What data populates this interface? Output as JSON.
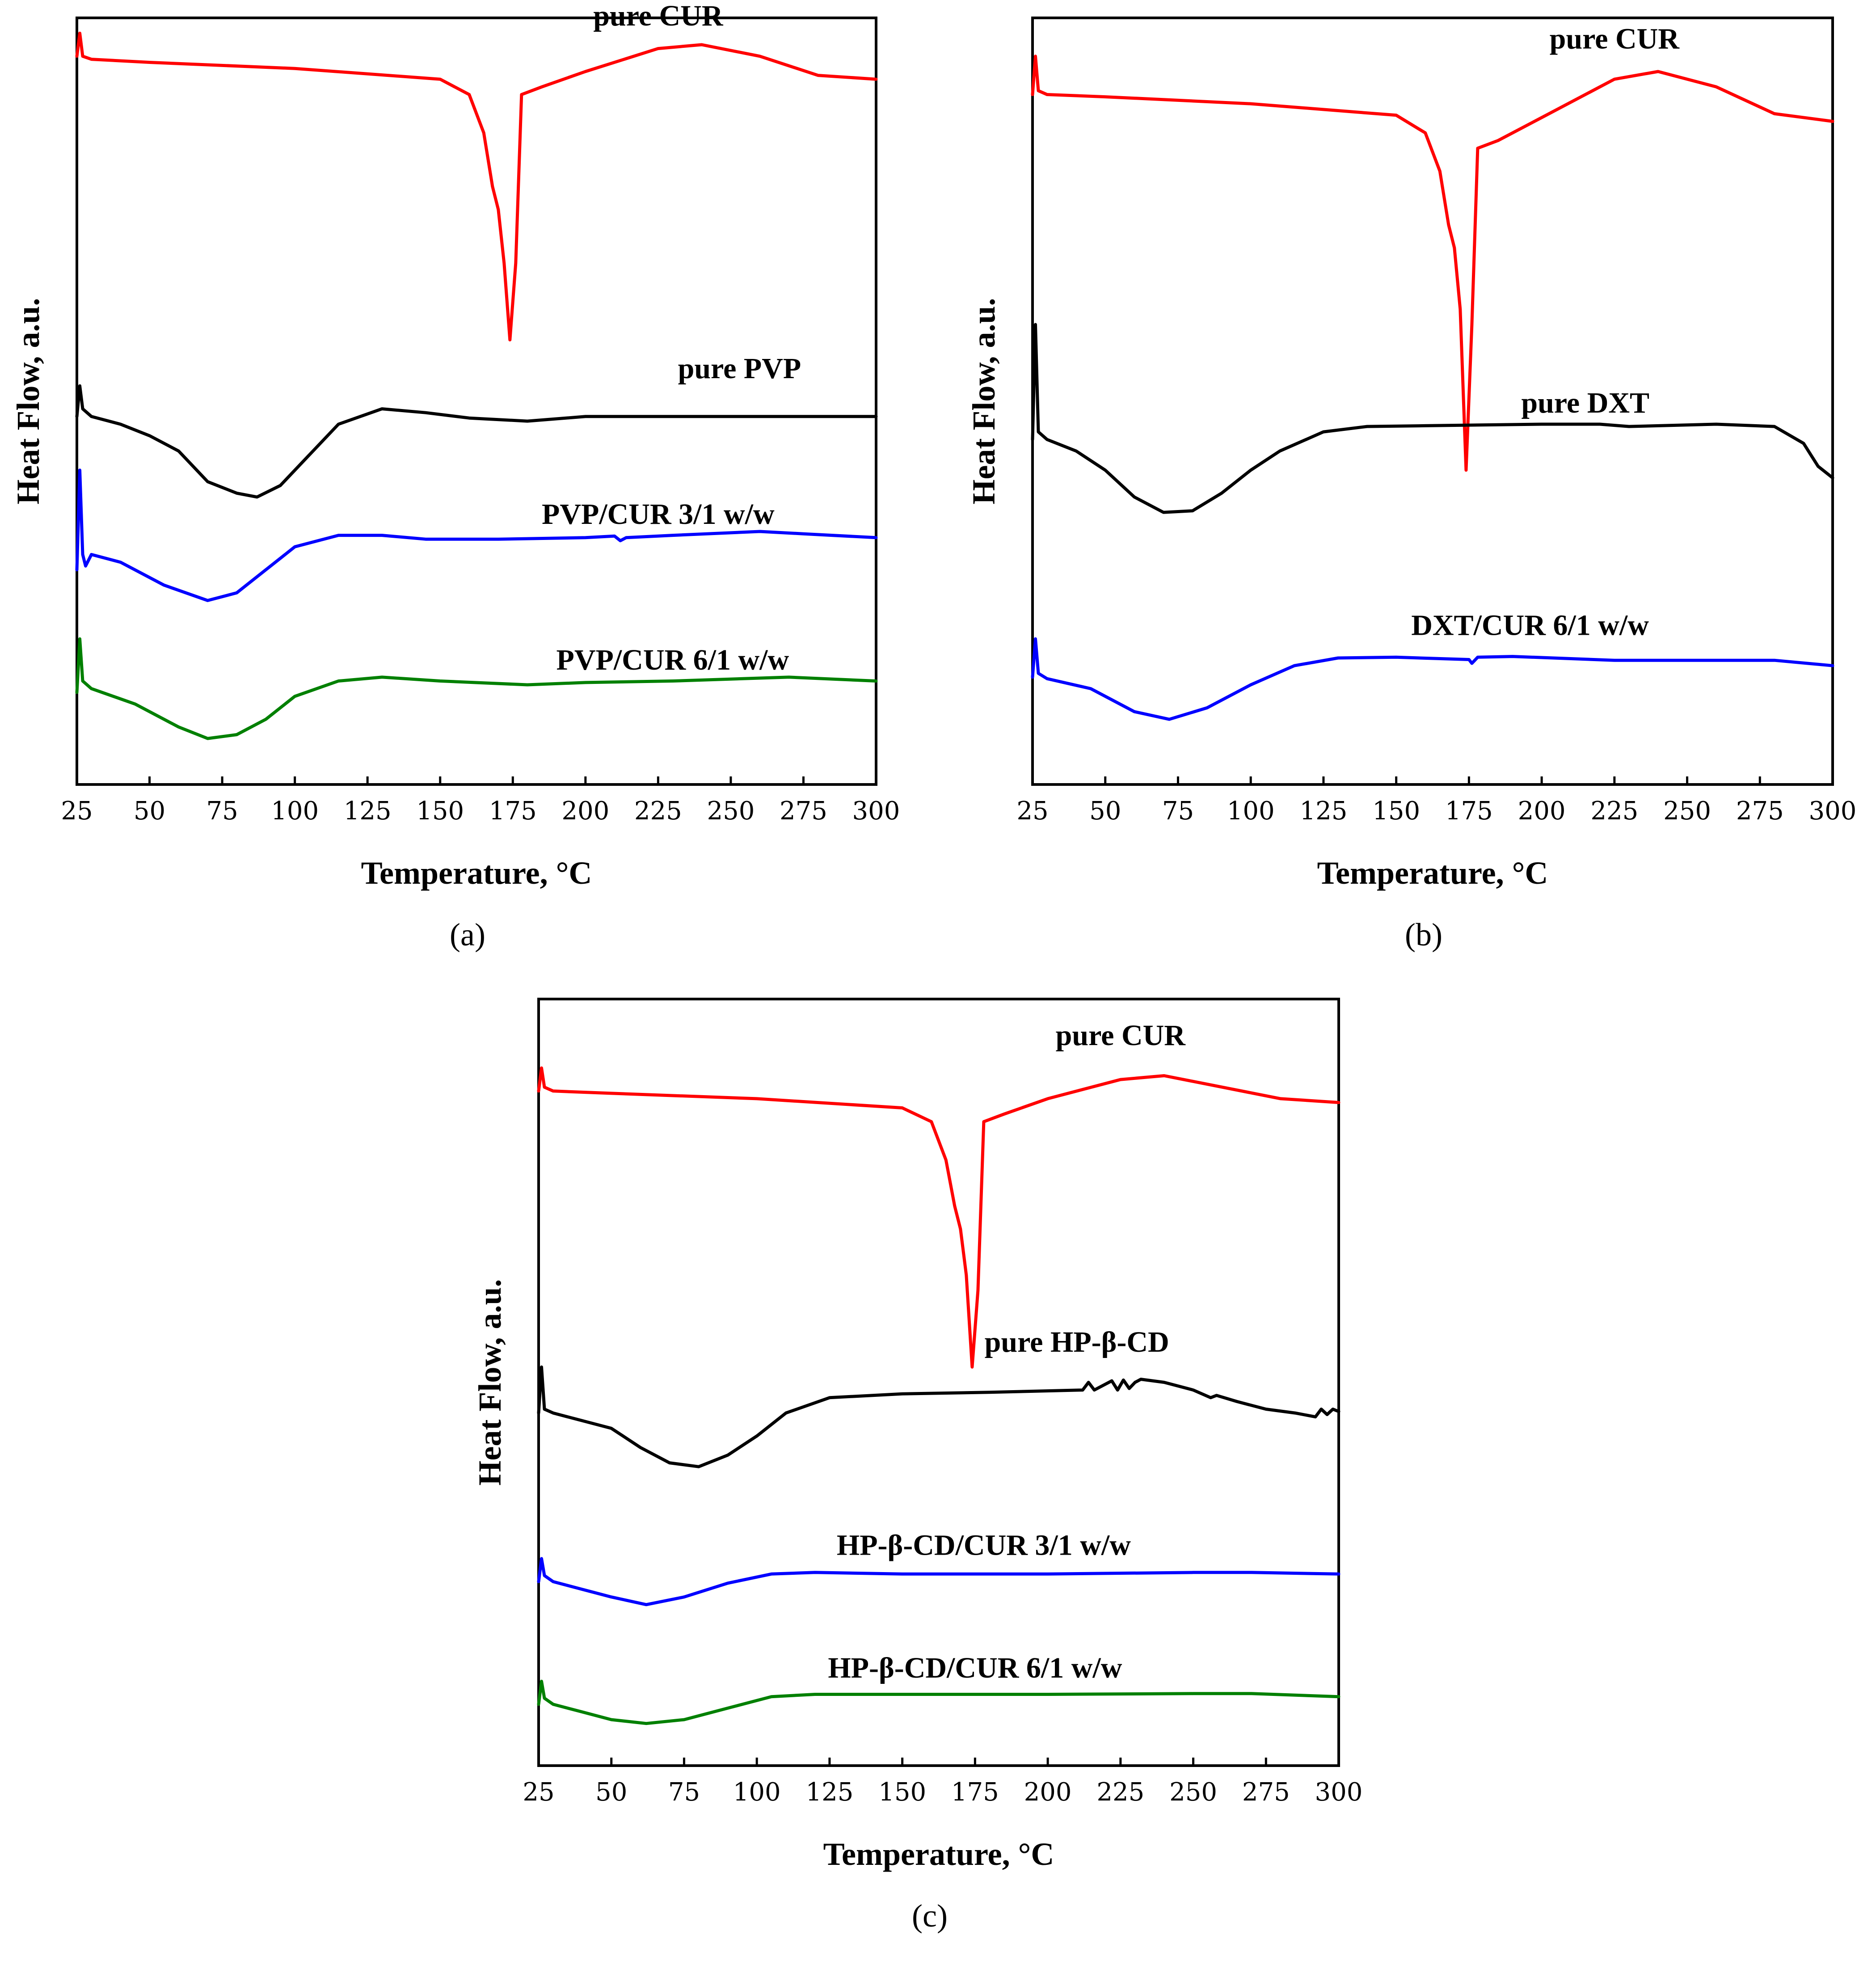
{
  "colors": {
    "red": "#ff0000",
    "black": "#000000",
    "blue": "#0000ff",
    "green": "#008000"
  },
  "chart_data": [
    {
      "type": "line",
      "id": "a",
      "panel_label": "(a)",
      "xlabel": "Temperature, °C",
      "ylabel": "Heat Flow, a.u.",
      "xlim": [
        25,
        300
      ],
      "ylim": [
        0,
        100
      ],
      "xticks": [
        25,
        50,
        75,
        100,
        125,
        150,
        175,
        200,
        225,
        250,
        275,
        300
      ],
      "series": [
        {
          "name": "pure CUR",
          "color": "#ff0000",
          "x": [
            25,
            26,
            27,
            30,
            50,
            100,
            150,
            160,
            165,
            168,
            170,
            172,
            174,
            176,
            178,
            185,
            200,
            225,
            240,
            260,
            280,
            300
          ],
          "y": [
            95,
            98,
            95,
            94.6,
            94.2,
            93.4,
            92,
            90,
            85,
            78,
            75,
            68,
            58,
            68,
            90,
            91,
            93,
            96,
            96.5,
            95,
            92.5,
            92
          ],
          "label_x": 225,
          "label_y": 99
        },
        {
          "name": "pure PVP",
          "color": "#000000",
          "x": [
            25,
            26,
            27,
            30,
            40,
            50,
            60,
            70,
            80,
            87,
            95,
            105,
            115,
            130,
            145,
            160,
            180,
            200,
            250,
            300
          ],
          "y": [
            48,
            52,
            49,
            48,
            47,
            45.5,
            43.5,
            39.5,
            38,
            37.5,
            39,
            43,
            47,
            49,
            48.5,
            47.8,
            47.4,
            48,
            48,
            48
          ],
          "label_x": 253,
          "label_y": 53
        },
        {
          "name": "PVP/CUR 3/1 w/w",
          "color": "#0000ff",
          "x": [
            25,
            26,
            27,
            28,
            30,
            40,
            55,
            70,
            80,
            90,
            100,
            115,
            130,
            145,
            170,
            200,
            210,
            212,
            214,
            230,
            260,
            275,
            300
          ],
          "y": [
            28,
            41,
            30,
            28.5,
            30,
            29,
            26,
            24,
            25,
            28,
            31,
            32.5,
            32.5,
            32,
            32,
            32.2,
            32.4,
            31.8,
            32.2,
            32.5,
            33,
            32.7,
            32.2
          ],
          "label_x": 225,
          "label_y": 34
        },
        {
          "name": "PVP/CUR 6/1 w/w",
          "color": "#008000",
          "x": [
            25,
            26,
            27,
            30,
            45,
            60,
            70,
            80,
            90,
            100,
            115,
            130,
            150,
            180,
            200,
            230,
            270,
            300
          ],
          "y": [
            12,
            19,
            13.5,
            12.5,
            10.5,
            7.5,
            6,
            6.5,
            8.5,
            11.5,
            13.5,
            14,
            13.5,
            13,
            13.3,
            13.5,
            14,
            13.5
          ],
          "label_x": 230,
          "label_y": 15
        }
      ]
    },
    {
      "type": "line",
      "id": "b",
      "panel_label": "(b)",
      "xlabel": "Temperature, °C",
      "ylabel": "Heat Flow, a.u.",
      "xlim": [
        25,
        300
      ],
      "ylim": [
        0,
        100
      ],
      "xticks": [
        25,
        50,
        75,
        100,
        125,
        150,
        175,
        200,
        225,
        250,
        275,
        300
      ],
      "series": [
        {
          "name": "pure CUR",
          "color": "#ff0000",
          "x": [
            25,
            26,
            27,
            30,
            50,
            100,
            150,
            160,
            165,
            168,
            170,
            172,
            174,
            176,
            178,
            185,
            200,
            225,
            240,
            260,
            280,
            300
          ],
          "y": [
            90,
            95,
            90.5,
            90,
            89.7,
            88.8,
            87.3,
            85,
            80,
            73,
            70,
            62,
            41,
            60,
            83,
            84,
            87,
            92,
            93,
            91,
            87.5,
            86.5
          ],
          "label_x": 225,
          "label_y": 96
        },
        {
          "name": "pure DXT",
          "color": "#000000",
          "x": [
            25,
            26,
            27,
            30,
            40,
            50,
            60,
            70,
            80,
            90,
            100,
            110,
            125,
            140,
            160,
            200,
            220,
            230,
            260,
            280,
            290,
            295,
            300
          ],
          "y": [
            45,
            60,
            46,
            45,
            43.5,
            41,
            37.5,
            35.5,
            35.7,
            38,
            41,
            43.5,
            46,
            46.7,
            46.8,
            47,
            47,
            46.7,
            47,
            46.7,
            44.5,
            41.5,
            40
          ],
          "label_x": 215,
          "label_y": 48.5
        },
        {
          "name": "DXT/CUR 6/1 w/w",
          "color": "#0000ff",
          "x": [
            25,
            26,
            27,
            30,
            45,
            60,
            72,
            85,
            100,
            115,
            130,
            150,
            175,
            176,
            178,
            190,
            225,
            280,
            300
          ],
          "y": [
            14,
            19,
            14.5,
            13.8,
            12.5,
            9.5,
            8.5,
            10,
            13,
            15.5,
            16.5,
            16.6,
            16.3,
            15.8,
            16.6,
            16.7,
            16.2,
            16.2,
            15.5
          ],
          "label_x": 196,
          "label_y": 19.5
        }
      ]
    },
    {
      "type": "line",
      "id": "c",
      "panel_label": "(c)",
      "xlabel": "Temperature, °C",
      "ylabel": "Heat Flow, a.u.",
      "xlim": [
        25,
        300
      ],
      "ylim": [
        0,
        100
      ],
      "xticks": [
        25,
        50,
        75,
        100,
        125,
        150,
        175,
        200,
        225,
        250,
        275,
        300
      ],
      "series": [
        {
          "name": "pure CUR",
          "color": "#ff0000",
          "x": [
            25,
            26,
            27,
            30,
            50,
            100,
            150,
            160,
            165,
            168,
            170,
            172,
            174,
            176,
            178,
            185,
            200,
            225,
            240,
            260,
            280,
            300
          ],
          "y": [
            88,
            91,
            88.5,
            88,
            87.7,
            87,
            85.8,
            84,
            79,
            73,
            70,
            64,
            52,
            62,
            84,
            85,
            87,
            89.5,
            90,
            88.5,
            87,
            86.5
          ],
          "label_x": 225,
          "label_y": 94
        },
        {
          "name": "pure HP-β-CD",
          "color": "#000000",
          "x": [
            25,
            26,
            27,
            30,
            40,
            50,
            60,
            70,
            80,
            90,
            100,
            110,
            125,
            150,
            180,
            212,
            214,
            216,
            222,
            224,
            226,
            228,
            230,
            232,
            240,
            250,
            256,
            258,
            265,
            275,
            285,
            292,
            294,
            296,
            298,
            300
          ],
          "y": [
            46,
            52,
            46.5,
            46,
            45,
            44,
            41.5,
            39.5,
            39,
            40.5,
            43,
            46,
            48,
            48.5,
            48.7,
            49,
            50,
            49,
            50.2,
            49,
            50.3,
            49.2,
            50,
            50.4,
            50,
            49,
            48,
            48.3,
            47.5,
            46.5,
            46,
            45.5,
            46.5,
            45.8,
            46.5,
            46.2
          ],
          "label_x": 210,
          "label_y": 54
        },
        {
          "name": "HP-β-CD/CUR 3/1 w/w",
          "color": "#0000ff",
          "x": [
            25,
            26,
            27,
            30,
            40,
            50,
            62,
            75,
            90,
            105,
            120,
            150,
            200,
            250,
            270,
            300
          ],
          "y": [
            24,
            27,
            24.8,
            24,
            23,
            22,
            21,
            22,
            23.8,
            25,
            25.2,
            25,
            25,
            25.2,
            25.2,
            25
          ],
          "label_x": 178,
          "label_y": 27.5
        },
        {
          "name": "HP-β-CD/CUR 6/1 w/w",
          "color": "#008000",
          "x": [
            25,
            26,
            27,
            30,
            40,
            50,
            62,
            75,
            90,
            105,
            120,
            150,
            200,
            250,
            270,
            300
          ],
          "y": [
            8,
            11,
            8.8,
            8,
            7,
            6,
            5.5,
            6,
            7.5,
            9,
            9.3,
            9.3,
            9.3,
            9.4,
            9.4,
            9
          ],
          "label_x": 175,
          "label_y": 11.5
        }
      ]
    }
  ]
}
